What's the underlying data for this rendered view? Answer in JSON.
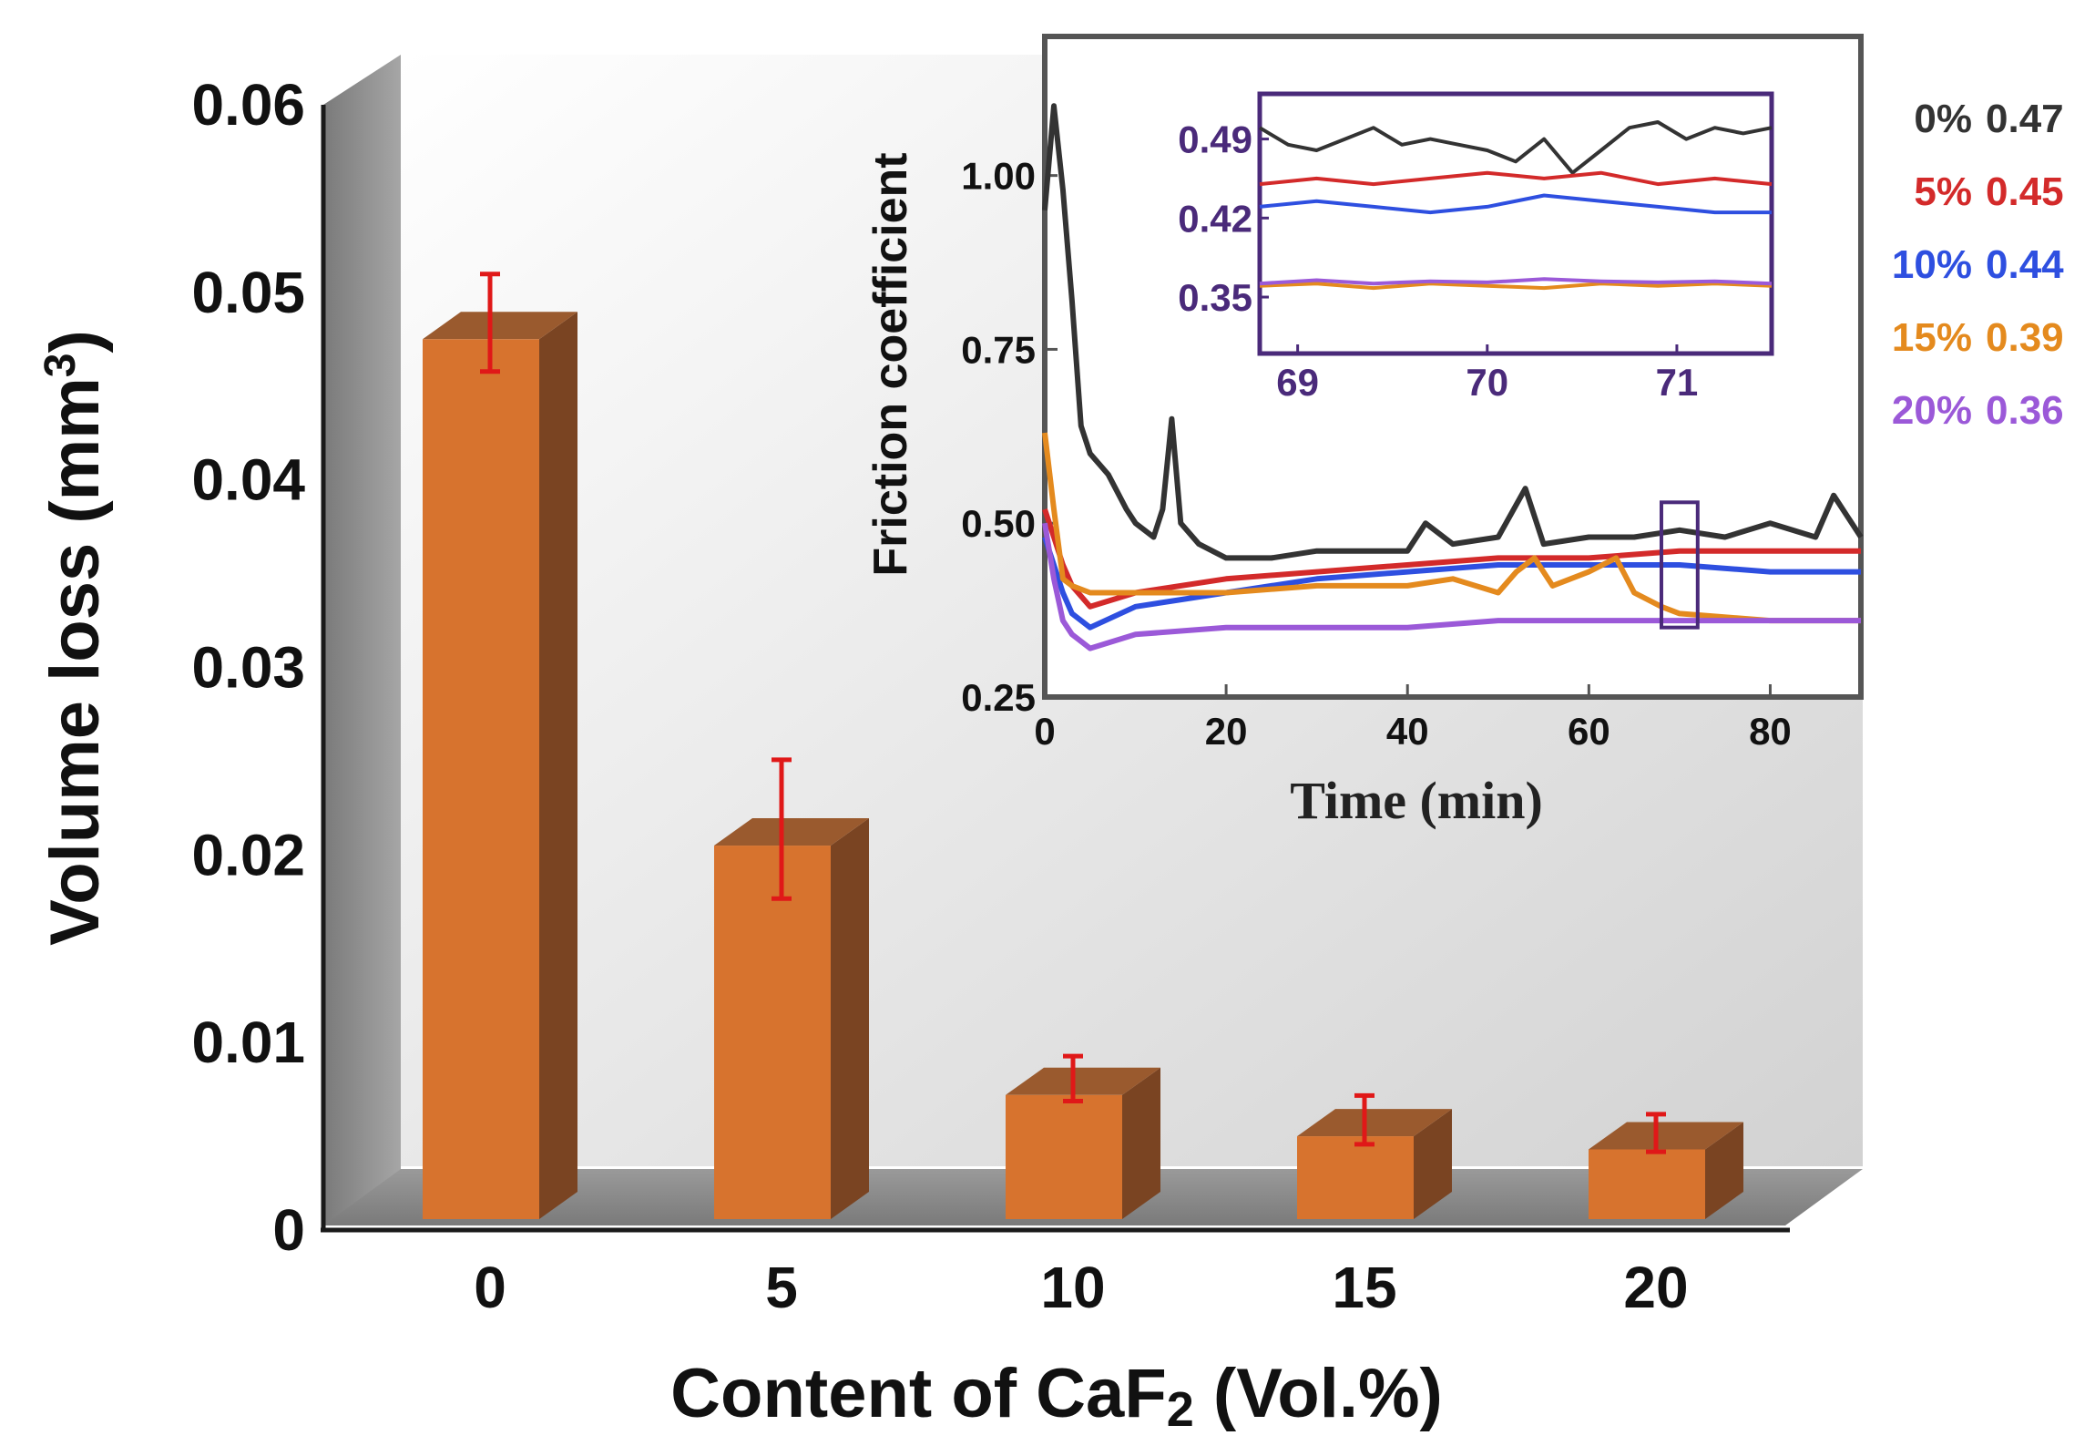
{
  "chart_data": [
    {
      "type": "bar",
      "title": "",
      "xlabel_parts": [
        "Content of CaF",
        "2",
        " (Vol.%)"
      ],
      "ylabel_parts": [
        "Volume loss (mm",
        "3",
        ")"
      ],
      "categories": [
        "0",
        "5",
        "10",
        "15",
        "20"
      ],
      "values": [
        0.0475,
        0.0205,
        0.0072,
        0.005,
        0.0043
      ],
      "errors": [
        0.0026,
        0.0037,
        0.0012,
        0.0013,
        0.001
      ],
      "ylim": [
        0,
        0.06
      ],
      "yticks": [
        0,
        0.01,
        0.02,
        0.03,
        0.04,
        0.05,
        0.06
      ],
      "ytick_labels": [
        "0",
        "0.01",
        "0.02",
        "0.03",
        "0.04",
        "0.05",
        "0.06"
      ],
      "colors": {
        "bar_front": "#d7732e",
        "bar_side": "#7a4422",
        "bar_top": "#9a5a2e",
        "error_bar": "#e01818",
        "wall": "#8e8e8e",
        "floor": "#8a8a8a"
      }
    },
    {
      "type": "line",
      "title": "",
      "xlabel": "Time (min)",
      "ylabel": "Friction coefficient",
      "xlim": [
        0,
        90
      ],
      "ylim": [
        0.25,
        1.2
      ],
      "xticks": [
        0,
        20,
        40,
        60,
        80
      ],
      "xtick_labels": [
        "0",
        "20",
        "40",
        "60",
        "80"
      ],
      "yticks": [
        0.25,
        0.5,
        0.75,
        1.0
      ],
      "ytick_labels": [
        "0.25",
        "0.50",
        "0.75",
        "1.00"
      ],
      "series": [
        {
          "name": "0%",
          "value_label": "0.47",
          "color": "#333333",
          "x": [
            0,
            1,
            2,
            3,
            4,
            5,
            7,
            9,
            10,
            12,
            13,
            14,
            15,
            17,
            20,
            25,
            30,
            35,
            40,
            42,
            45,
            50,
            53,
            55,
            60,
            65,
            70,
            75,
            80,
            85,
            87,
            90
          ],
          "y": [
            0.95,
            1.1,
            0.98,
            0.82,
            0.64,
            0.6,
            0.57,
            0.52,
            0.5,
            0.48,
            0.52,
            0.65,
            0.5,
            0.47,
            0.45,
            0.45,
            0.46,
            0.46,
            0.46,
            0.5,
            0.47,
            0.48,
            0.55,
            0.47,
            0.48,
            0.48,
            0.49,
            0.48,
            0.5,
            0.48,
            0.54,
            0.48
          ]
        },
        {
          "name": "5%",
          "value_label": "0.45",
          "color": "#d32a2a",
          "x": [
            0,
            1,
            2,
            3,
            5,
            10,
            20,
            30,
            40,
            50,
            60,
            70,
            80,
            90
          ],
          "y": [
            0.52,
            0.48,
            0.44,
            0.41,
            0.38,
            0.4,
            0.42,
            0.43,
            0.44,
            0.45,
            0.45,
            0.46,
            0.46,
            0.46
          ]
        },
        {
          "name": "10%",
          "value_label": "0.44",
          "color": "#2e4fe0",
          "x": [
            0,
            1,
            2,
            3,
            5,
            10,
            20,
            30,
            40,
            50,
            60,
            70,
            80,
            90
          ],
          "y": [
            0.48,
            0.44,
            0.4,
            0.37,
            0.35,
            0.38,
            0.4,
            0.42,
            0.43,
            0.44,
            0.44,
            0.44,
            0.43,
            0.43
          ]
        },
        {
          "name": "15%",
          "value_label": "0.39",
          "color": "#e48a1e",
          "x": [
            0,
            1,
            2,
            3,
            5,
            10,
            20,
            30,
            40,
            45,
            50,
            52,
            54,
            56,
            60,
            63,
            65,
            68,
            70,
            80,
            90
          ],
          "y": [
            0.63,
            0.52,
            0.42,
            0.41,
            0.4,
            0.4,
            0.4,
            0.41,
            0.41,
            0.42,
            0.4,
            0.43,
            0.45,
            0.41,
            0.43,
            0.45,
            0.4,
            0.38,
            0.37,
            0.36,
            0.36
          ]
        },
        {
          "name": "20%",
          "value_label": "0.36",
          "color": "#9b59d8",
          "x": [
            0,
            1,
            2,
            3,
            5,
            10,
            20,
            30,
            40,
            50,
            60,
            70,
            80,
            90
          ],
          "y": [
            0.5,
            0.42,
            0.36,
            0.34,
            0.32,
            0.34,
            0.35,
            0.35,
            0.35,
            0.36,
            0.36,
            0.36,
            0.36,
            0.36
          ]
        }
      ],
      "zoom_box": {
        "x_range": [
          68,
          72
        ],
        "y_range": [
          0.35,
          0.53
        ],
        "color": "#4a2a7a"
      }
    },
    {
      "type": "line",
      "title": "",
      "xlim": [
        68.8,
        71.5
      ],
      "ylim": [
        0.3,
        0.53
      ],
      "xticks": [
        69,
        70,
        71
      ],
      "xtick_labels": [
        "69",
        "70",
        "71"
      ],
      "yticks": [
        0.35,
        0.42,
        0.49
      ],
      "ytick_labels": [
        "0.35",
        "0.42",
        "0.49"
      ],
      "frame_color": "#4a2a7a",
      "series": [
        {
          "name": "0%",
          "color": "#333333",
          "x": [
            68.8,
            68.95,
            69.1,
            69.25,
            69.4,
            69.55,
            69.7,
            69.85,
            70.0,
            70.15,
            70.3,
            70.45,
            70.6,
            70.75,
            70.9,
            71.05,
            71.2,
            71.35,
            71.5
          ],
          "y": [
            0.5,
            0.485,
            0.48,
            0.49,
            0.5,
            0.485,
            0.49,
            0.485,
            0.48,
            0.47,
            0.49,
            0.46,
            0.48,
            0.5,
            0.505,
            0.49,
            0.5,
            0.495,
            0.5
          ]
        },
        {
          "name": "5%",
          "color": "#d32a2a",
          "x": [
            68.8,
            69.1,
            69.4,
            69.7,
            70.0,
            70.3,
            70.6,
            70.9,
            71.2,
            71.5
          ],
          "y": [
            0.45,
            0.455,
            0.45,
            0.455,
            0.46,
            0.455,
            0.46,
            0.45,
            0.455,
            0.45
          ]
        },
        {
          "name": "10%",
          "color": "#2e4fe0",
          "x": [
            68.8,
            69.1,
            69.4,
            69.7,
            70.0,
            70.3,
            70.6,
            70.9,
            71.2,
            71.5
          ],
          "y": [
            0.43,
            0.435,
            0.43,
            0.425,
            0.43,
            0.44,
            0.435,
            0.43,
            0.425,
            0.425
          ]
        },
        {
          "name": "15%",
          "color": "#e48a1e",
          "x": [
            68.8,
            69.1,
            69.4,
            69.7,
            70.0,
            70.3,
            70.6,
            70.9,
            71.2,
            71.5
          ],
          "y": [
            0.36,
            0.362,
            0.358,
            0.362,
            0.36,
            0.358,
            0.362,
            0.36,
            0.362,
            0.36
          ]
        },
        {
          "name": "20%",
          "color": "#9b59d8",
          "x": [
            68.8,
            69.1,
            69.4,
            69.7,
            70.0,
            70.3,
            70.6,
            70.9,
            71.2,
            71.5
          ],
          "y": [
            0.362,
            0.365,
            0.362,
            0.364,
            0.363,
            0.366,
            0.364,
            0.363,
            0.364,
            0.362
          ]
        }
      ]
    }
  ]
}
